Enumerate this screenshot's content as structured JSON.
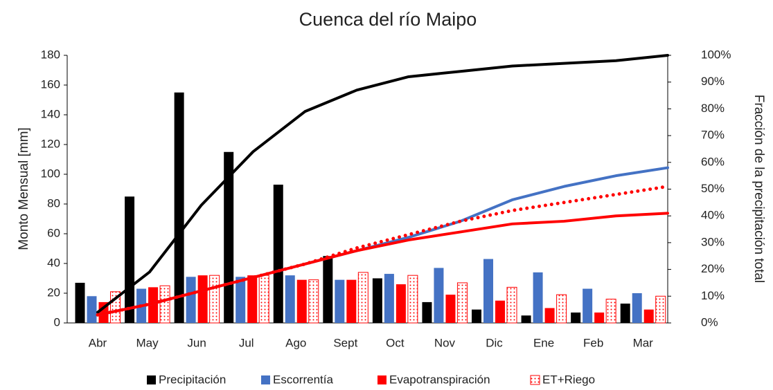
{
  "chart_data": {
    "type": "bar",
    "title": "Cuenca del río Maipo",
    "y_label": "Monto Mensual [mm]",
    "y2_label": "Fracción de la precipitación total",
    "categories": [
      "Abr",
      "May",
      "Jun",
      "Jul",
      "Ago",
      "Sept",
      "Oct",
      "Nov",
      "Dic",
      "Ene",
      "Feb",
      "Mar"
    ],
    "series": [
      {
        "name": "Precipitación",
        "color": "#000000",
        "values": [
          27,
          85,
          155,
          115,
          93,
          45,
          30,
          14,
          9,
          5,
          7,
          13
        ]
      },
      {
        "name": "Escorrentía",
        "color": "#4472c4",
        "values": [
          18,
          23,
          31,
          31,
          32,
          29,
          33,
          37,
          43,
          34,
          23,
          20
        ]
      },
      {
        "name": "Evapotranspiración",
        "color": "#ff0000",
        "values": [
          14,
          24,
          32,
          32,
          29,
          29,
          26,
          19,
          15,
          10,
          7,
          9
        ]
      },
      {
        "name": "ET+Riego",
        "color": "#ff0000",
        "pattern": "dots",
        "values": [
          21,
          25,
          32,
          32,
          29,
          34,
          32,
          27,
          24,
          19,
          16,
          18
        ]
      }
    ],
    "lines": [
      {
        "color": "#000000",
        "axis": "y2",
        "values": [
          4,
          19,
          44,
          64,
          79,
          87,
          92,
          94,
          96,
          97,
          98,
          100
        ]
      },
      {
        "color": "#4472c4",
        "axis": "y2",
        "values": [
          3,
          7,
          12,
          17,
          22,
          27,
          32,
          38,
          46,
          51,
          55,
          58
        ]
      },
      {
        "color": "#ff0000",
        "axis": "y2",
        "values": [
          3,
          7,
          12,
          17,
          22,
          27,
          31,
          34,
          37,
          38,
          40,
          41
        ]
      },
      {
        "color": "#ff0000",
        "axis": "y2",
        "dotted": true,
        "values": [
          3,
          7,
          12,
          17,
          22,
          28,
          33,
          38,
          42,
          45,
          48,
          51
        ]
      }
    ],
    "ylim": [
      0,
      180
    ],
    "yticks": [
      0,
      20,
      40,
      60,
      80,
      100,
      120,
      140,
      160,
      180
    ],
    "y2lim": [
      0,
      100
    ],
    "y2ticks": [
      {
        "value": 0,
        "label": "0%"
      },
      {
        "value": 10,
        "label": "10%"
      },
      {
        "value": 20,
        "label": "20%"
      },
      {
        "value": 30,
        "label": "30%"
      },
      {
        "value": 40,
        "label": "40%"
      },
      {
        "value": 50,
        "label": "50%"
      },
      {
        "value": 60,
        "label": "60%"
      },
      {
        "value": 70,
        "label": "70%"
      },
      {
        "value": 80,
        "label": "80%"
      },
      {
        "value": 90,
        "label": "90%"
      },
      {
        "value": 100,
        "label": "100%"
      }
    ],
    "legend": "bottom"
  }
}
